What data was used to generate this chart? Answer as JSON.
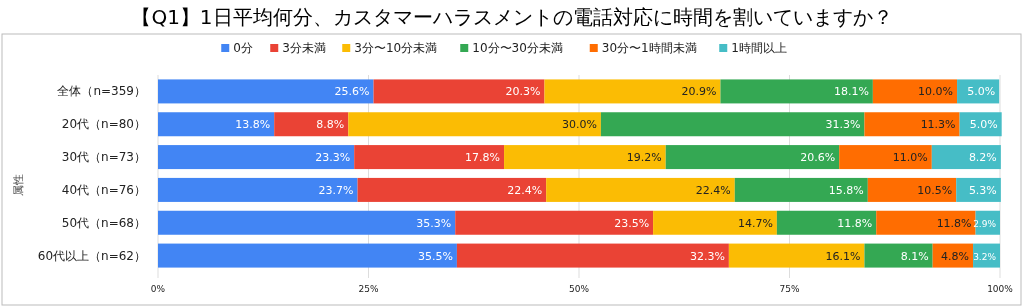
{
  "chart_data": {
    "type": "bar",
    "orientation": "horizontal",
    "stacked": true,
    "title": "【Q1】1日平均何分、カスタマーハラスメントの電話対応に時間を割いていますか？",
    "ylabel": "属性",
    "legend": "top",
    "grid": "x",
    "categories": [
      "全体（n=359）",
      "20代（n=80）",
      "30代（n=73）",
      "40代（n=76）",
      "50代（n=68）",
      "60代以上（n=62）"
    ],
    "xlim": [
      0,
      100
    ],
    "xticks": [
      {
        "value": 0,
        "label": "0%"
      },
      {
        "value": 25,
        "label": "25%"
      },
      {
        "value": 50,
        "label": "50%"
      },
      {
        "value": 75,
        "label": "75%"
      },
      {
        "value": 100,
        "label": "100%"
      }
    ],
    "series": [
      {
        "name": "0分",
        "color": "#4285f4",
        "values": [
          25.6,
          13.8,
          23.3,
          23.7,
          35.3,
          35.5
        ],
        "value_labels": [
          "25.6%",
          "13.8%",
          "23.3%",
          "23.7%",
          "35.3%",
          "35.5%"
        ]
      },
      {
        "name": "3分未満",
        "color": "#ea4335",
        "values": [
          20.3,
          8.8,
          17.8,
          22.4,
          23.5,
          32.3
        ],
        "value_labels": [
          "20.3%",
          "8.8%",
          "17.8%",
          "22.4%",
          "23.5%",
          "32.3%"
        ]
      },
      {
        "name": "3分〜10分未満",
        "color": "#fbbc04",
        "values": [
          20.9,
          30.0,
          19.2,
          22.4,
          14.7,
          16.1
        ],
        "value_labels": [
          "20.9%",
          "30.0%",
          "19.2%",
          "22.4%",
          "14.7%",
          "16.1%"
        ]
      },
      {
        "name": "10分〜30分未満",
        "color": "#34a853",
        "values": [
          18.1,
          31.3,
          20.6,
          15.8,
          11.8,
          8.1
        ],
        "value_labels": [
          "18.1%",
          "31.3%",
          "20.6%",
          "15.8%",
          "11.8%",
          "8.1%"
        ]
      },
      {
        "name": "30分〜1時間未満",
        "color": "#ff6d01",
        "values": [
          10.0,
          11.3,
          11.0,
          10.5,
          11.8,
          4.8
        ],
        "value_labels": [
          "10.0%",
          "11.3%",
          "11.0%",
          "10.5%",
          "11.8%",
          "4.8%"
        ]
      },
      {
        "name": "1時間以上",
        "color": "#46bdc6",
        "values": [
          5.0,
          5.0,
          8.2,
          5.3,
          2.9,
          3.2
        ],
        "value_labels": [
          "5.0%",
          "5.0%",
          "8.2%",
          "5.3%",
          "2.9%",
          "3.2%"
        ]
      }
    ]
  }
}
